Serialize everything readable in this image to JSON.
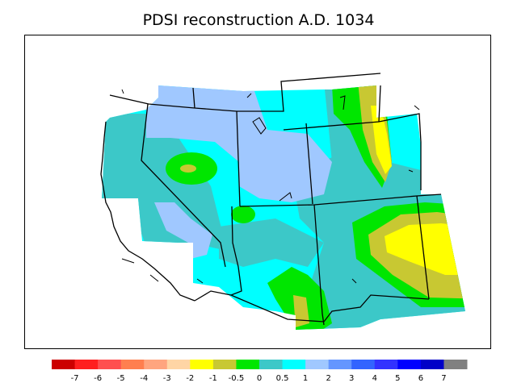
{
  "title": "PDSI reconstruction A.D. 1034",
  "legend": {
    "colors": [
      "#cc0000",
      "#ff1f1f",
      "#ff4f4f",
      "#ff7f4f",
      "#ffa57f",
      "#ffd5a5",
      "#ffff00",
      "#c8c832",
      "#00e600",
      "#3cc8c8",
      "#00ffff",
      "#a0c8ff",
      "#6496ff",
      "#3264ff",
      "#3232ff",
      "#0000ff",
      "#0000c8",
      "#808080"
    ],
    "tick_labels": [
      "-7",
      "-6",
      "-5",
      "-4",
      "-3",
      "-2",
      "-1",
      "-0.5",
      "0",
      "0.5",
      "1",
      "2",
      "3",
      "4",
      "5",
      "6",
      "7"
    ]
  }
}
